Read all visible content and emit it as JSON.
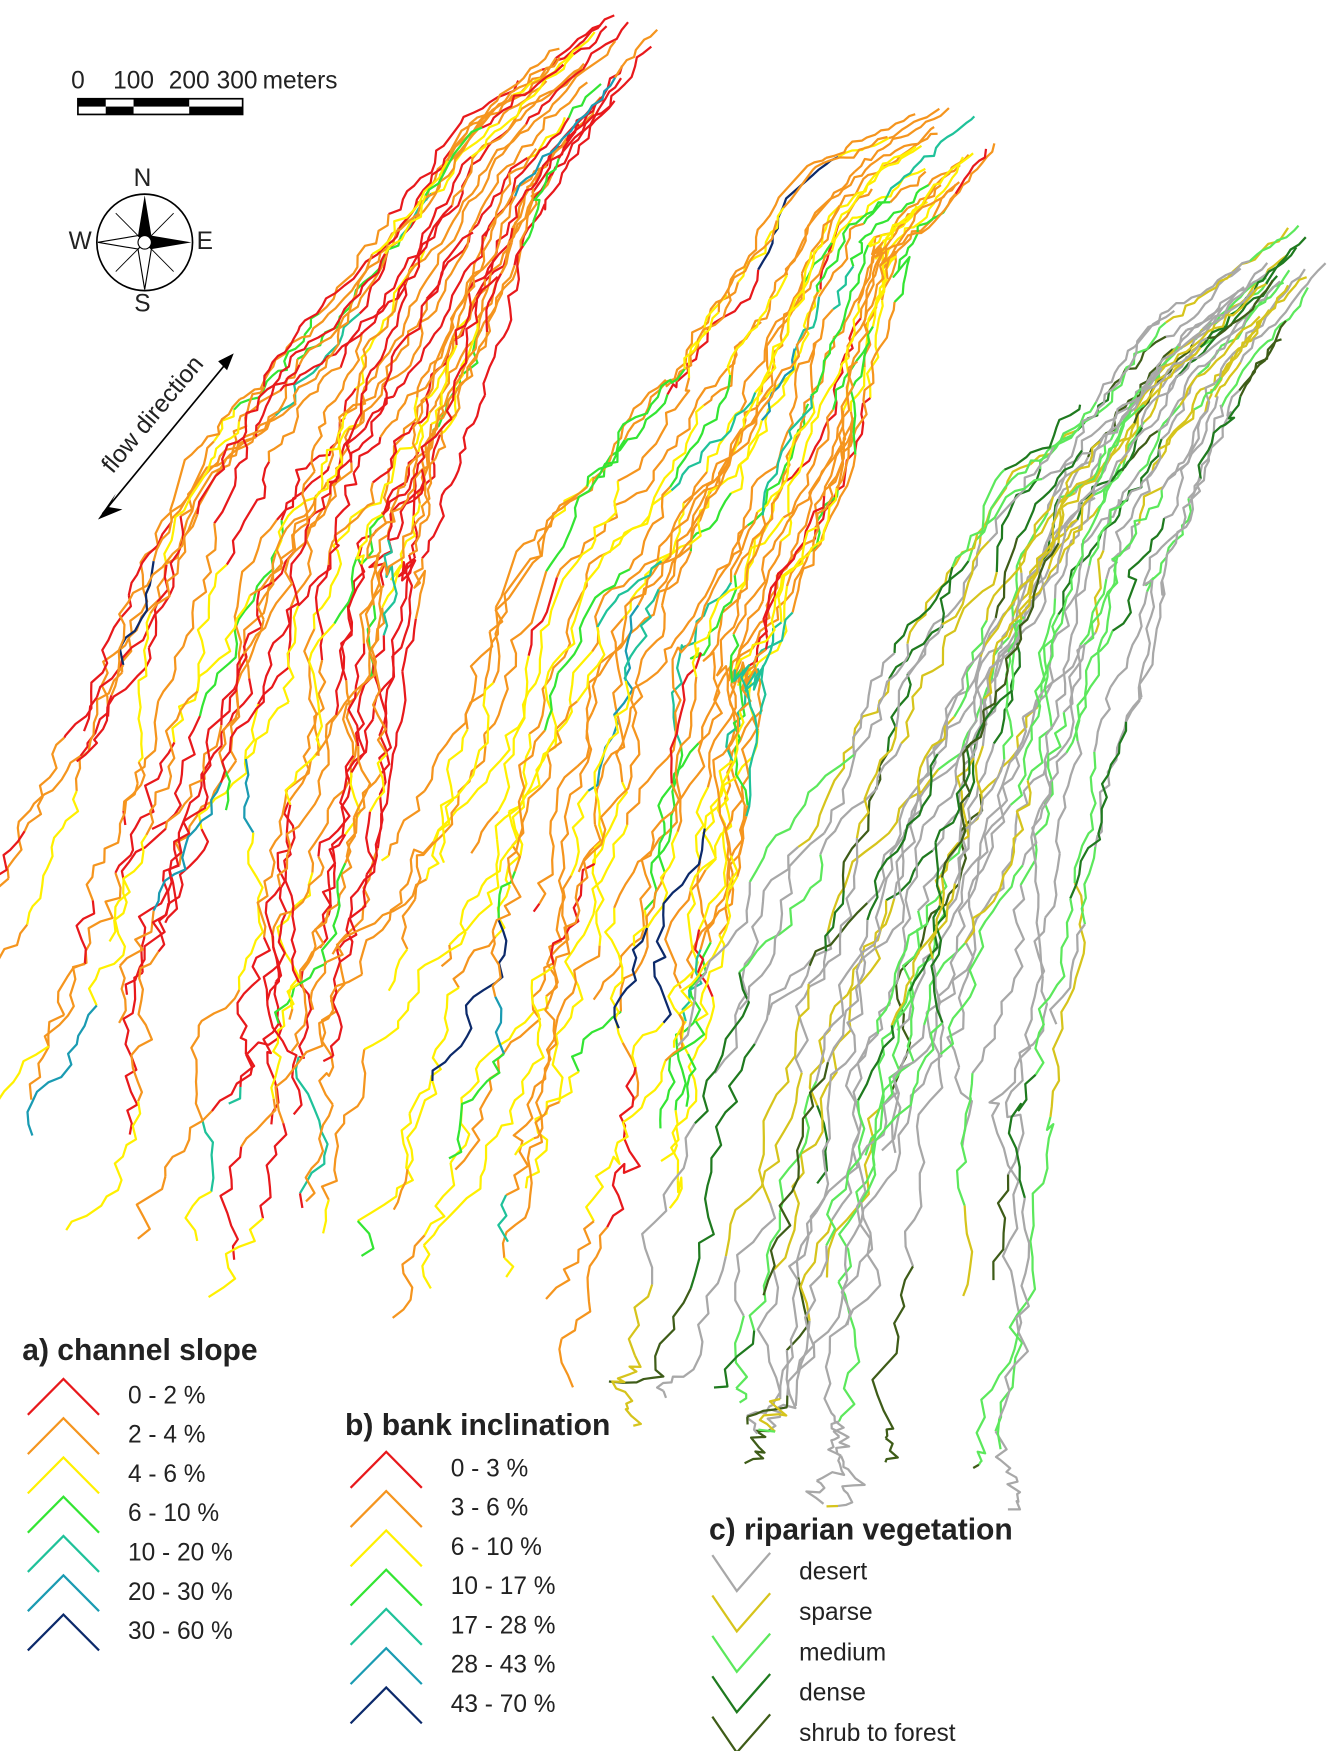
{
  "scale_bar": {
    "labels": [
      "0",
      "100",
      "200",
      "300"
    ],
    "unit": "meters"
  },
  "compass": {
    "north": "N",
    "south": "S",
    "west": "W",
    "east": "E"
  },
  "flow_label": "flow direction",
  "legends": [
    {
      "title": "a) channel slope",
      "items": [
        {
          "label": "0 - 2 %",
          "color": "#e8191c"
        },
        {
          "label": "2 - 4 %",
          "color": "#f5951e"
        },
        {
          "label": "4 - 6 %",
          "color": "#fff000"
        },
        {
          "label": "6 - 10 %",
          "color": "#33e533"
        },
        {
          "label": "10 - 20 %",
          "color": "#1fc29a"
        },
        {
          "label": "20 - 30 %",
          "color": "#1a9bb2"
        },
        {
          "label": "30 - 60 %",
          "color": "#0c2a6b"
        }
      ]
    },
    {
      "title": "b) bank inclination",
      "items": [
        {
          "label": "0 - 3 %",
          "color": "#e8191c"
        },
        {
          "label": "3 - 6 %",
          "color": "#f5951e"
        },
        {
          "label": "6 - 10 %",
          "color": "#fff000"
        },
        {
          "label": "10 - 17 %",
          "color": "#33e533"
        },
        {
          "label": "17 - 28 %",
          "color": "#1fc29a"
        },
        {
          "label": "28 - 43 %",
          "color": "#1a9bb2"
        },
        {
          "label": "43 - 70 %",
          "color": "#0c2a6b"
        }
      ]
    },
    {
      "title": "c) riparian vegetation",
      "items": [
        {
          "label": "desert",
          "color": "#a8a8a8"
        },
        {
          "label": "sparse",
          "color": "#d6c41c"
        },
        {
          "label": "medium",
          "color": "#5ce85c"
        },
        {
          "label": "dense",
          "color": "#1f7a1f"
        },
        {
          "label": "shrub to forest",
          "color": "#3e5c18"
        }
      ]
    }
  ]
}
